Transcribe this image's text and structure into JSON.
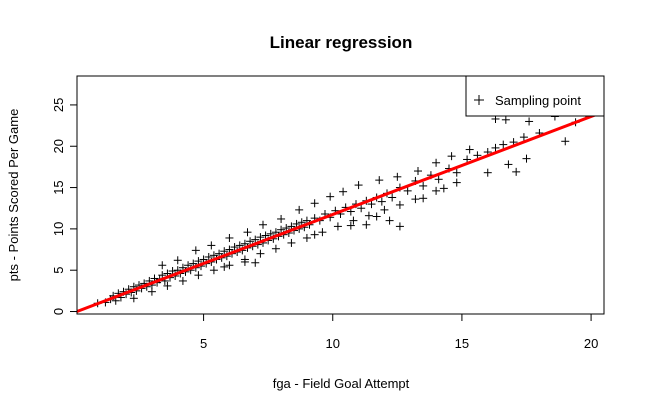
{
  "chart_data": {
    "type": "scatter",
    "title": "Linear regression",
    "xlabel": "fga - Field Goal Attempt",
    "ylabel": "pts - Points Scored Per Game",
    "xlim": [
      0.1,
      20.5
    ],
    "ylim": [
      -0.3,
      28.5
    ],
    "x_ticks": [
      5,
      10,
      15,
      20
    ],
    "y_ticks": [
      0,
      5,
      10,
      15,
      20,
      25
    ],
    "legend": {
      "position": "top-right",
      "label": "Sampling point",
      "marker": "+"
    },
    "regression": {
      "slope": 1.186,
      "intercept": -0.116,
      "color": "#ff0000"
    },
    "point_color": "#000000",
    "series": [
      {
        "name": "Sampling point",
        "points": [
          [
            0.9,
            1.0
          ],
          [
            1.2,
            1.1
          ],
          [
            1.4,
            1.5
          ],
          [
            1.5,
            1.9
          ],
          [
            1.6,
            1.3
          ],
          [
            1.7,
            2.2
          ],
          [
            1.8,
            1.7
          ],
          [
            1.9,
            2.4
          ],
          [
            2.0,
            2.1
          ],
          [
            2.1,
            2.7
          ],
          [
            2.2,
            2.3
          ],
          [
            2.3,
            3.0
          ],
          [
            2.4,
            2.5
          ],
          [
            2.5,
            3.2
          ],
          [
            2.6,
            2.8
          ],
          [
            2.7,
            3.4
          ],
          [
            2.8,
            3.0
          ],
          [
            2.9,
            3.7
          ],
          [
            3.0,
            3.2
          ],
          [
            3.1,
            4.0
          ],
          [
            3.2,
            3.5
          ],
          [
            3.3,
            3.9
          ],
          [
            3.4,
            4.4
          ],
          [
            3.5,
            3.7
          ],
          [
            3.6,
            4.6
          ],
          [
            3.7,
            4.1
          ],
          [
            3.8,
            4.9
          ],
          [
            3.9,
            4.3
          ],
          [
            4.0,
            5.0
          ],
          [
            4.1,
            4.6
          ],
          [
            4.2,
            5.3
          ],
          [
            4.3,
            4.8
          ],
          [
            4.4,
            5.6
          ],
          [
            4.5,
            5.0
          ],
          [
            4.6,
            5.8
          ],
          [
            4.7,
            5.3
          ],
          [
            4.8,
            6.1
          ],
          [
            4.9,
            5.5
          ],
          [
            5.0,
            6.3
          ],
          [
            5.1,
            5.8
          ],
          [
            5.2,
            6.6
          ],
          [
            5.3,
            6.0
          ],
          [
            5.4,
            6.8
          ],
          [
            5.5,
            6.3
          ],
          [
            5.6,
            7.0
          ],
          [
            5.7,
            6.5
          ],
          [
            5.8,
            7.3
          ],
          [
            5.9,
            6.7
          ],
          [
            6.0,
            7.5
          ],
          [
            6.1,
            7.0
          ],
          [
            6.2,
            7.8
          ],
          [
            6.3,
            7.2
          ],
          [
            6.4,
            8.0
          ],
          [
            6.5,
            7.4
          ],
          [
            6.6,
            8.2
          ],
          [
            6.7,
            7.7
          ],
          [
            6.8,
            8.5
          ],
          [
            6.9,
            7.9
          ],
          [
            7.0,
            8.7
          ],
          [
            7.1,
            8.1
          ],
          [
            7.2,
            9.0
          ],
          [
            7.3,
            8.3
          ],
          [
            7.4,
            9.2
          ],
          [
            7.5,
            8.6
          ],
          [
            7.6,
            9.4
          ],
          [
            7.7,
            8.8
          ],
          [
            7.8,
            9.6
          ],
          [
            7.9,
            9.1
          ],
          [
            8.0,
            9.9
          ],
          [
            8.1,
            9.3
          ],
          [
            8.2,
            10.1
          ],
          [
            8.3,
            9.5
          ],
          [
            8.4,
            10.3
          ],
          [
            8.5,
            9.8
          ],
          [
            8.6,
            10.6
          ],
          [
            8.7,
            10.0
          ],
          [
            8.8,
            10.8
          ],
          [
            8.9,
            10.2
          ],
          [
            9.0,
            11.0
          ],
          [
            9.1,
            10.5
          ],
          [
            9.3,
            11.3
          ],
          [
            9.5,
            11.0
          ],
          [
            9.7,
            11.8
          ],
          [
            9.9,
            11.4
          ],
          [
            10.1,
            12.2
          ],
          [
            10.3,
            11.8
          ],
          [
            10.5,
            12.6
          ],
          [
            10.7,
            12.1
          ],
          [
            10.9,
            13.0
          ],
          [
            11.1,
            12.5
          ],
          [
            11.3,
            13.4
          ],
          [
            11.5,
            13.0
          ],
          [
            11.7,
            13.8
          ],
          [
            11.9,
            13.3
          ],
          [
            12.1,
            14.3
          ],
          [
            12.3,
            13.8
          ],
          [
            12.6,
            15.0
          ],
          [
            12.9,
            14.6
          ],
          [
            13.2,
            15.8
          ],
          [
            13.5,
            15.2
          ],
          [
            13.8,
            16.5
          ],
          [
            14.1,
            16.0
          ],
          [
            14.5,
            17.3
          ],
          [
            14.8,
            16.8
          ],
          [
            15.2,
            18.4
          ],
          [
            15.6,
            18.9
          ],
          [
            16.0,
            19.3
          ],
          [
            16.3,
            19.8
          ],
          [
            16.6,
            20.2
          ],
          [
            17.0,
            20.5
          ],
          [
            17.4,
            21.1
          ],
          [
            18.0,
            21.6
          ],
          [
            2.3,
            1.6
          ],
          [
            3.0,
            2.4
          ],
          [
            3.6,
            3.1
          ],
          [
            4.2,
            3.7
          ],
          [
            4.8,
            4.4
          ],
          [
            5.4,
            5.0
          ],
          [
            6.0,
            5.6
          ],
          [
            6.6,
            6.3
          ],
          [
            7.2,
            7.0
          ],
          [
            7.8,
            7.6
          ],
          [
            8.4,
            8.3
          ],
          [
            9.0,
            8.9
          ],
          [
            9.6,
            9.6
          ],
          [
            10.2,
            10.3
          ],
          [
            10.8,
            11.0
          ],
          [
            11.4,
            11.6
          ],
          [
            12.0,
            12.3
          ],
          [
            12.6,
            12.9
          ],
          [
            13.2,
            13.6
          ],
          [
            14.0,
            14.6
          ],
          [
            14.8,
            15.6
          ],
          [
            16.0,
            16.8
          ],
          [
            16.8,
            17.8
          ],
          [
            17.5,
            18.5
          ],
          [
            3.4,
            5.6
          ],
          [
            4.0,
            6.2
          ],
          [
            4.7,
            7.4
          ],
          [
            5.3,
            8.0
          ],
          [
            6.0,
            8.9
          ],
          [
            6.7,
            9.6
          ],
          [
            7.3,
            10.5
          ],
          [
            8.0,
            11.2
          ],
          [
            8.7,
            12.3
          ],
          [
            9.3,
            13.1
          ],
          [
            9.9,
            13.9
          ],
          [
            10.4,
            14.5
          ],
          [
            11.0,
            15.3
          ],
          [
            11.8,
            15.9
          ],
          [
            12.5,
            16.3
          ],
          [
            13.3,
            17.0
          ],
          [
            14.0,
            18.0
          ],
          [
            14.6,
            18.8
          ],
          [
            15.3,
            19.6
          ],
          [
            15.9,
            24.2
          ],
          [
            16.7,
            23.2
          ],
          [
            17.6,
            23.0
          ],
          [
            18.6,
            23.6
          ],
          [
            19.4,
            22.9
          ],
          [
            19.0,
            20.6
          ],
          [
            19.8,
            24.0
          ],
          [
            20.3,
            24.3
          ],
          [
            17.1,
            16.9
          ],
          [
            12.6,
            10.3
          ],
          [
            12.2,
            11.0
          ],
          [
            11.7,
            11.5
          ],
          [
            16.3,
            23.3
          ],
          [
            7.0,
            5.9
          ],
          [
            6.6,
            6.0
          ],
          [
            5.8,
            5.4
          ],
          [
            9.3,
            9.3
          ],
          [
            10.7,
            10.4
          ],
          [
            11.3,
            10.5
          ],
          [
            13.5,
            13.7
          ],
          [
            14.3,
            14.9
          ]
        ]
      }
    ]
  }
}
